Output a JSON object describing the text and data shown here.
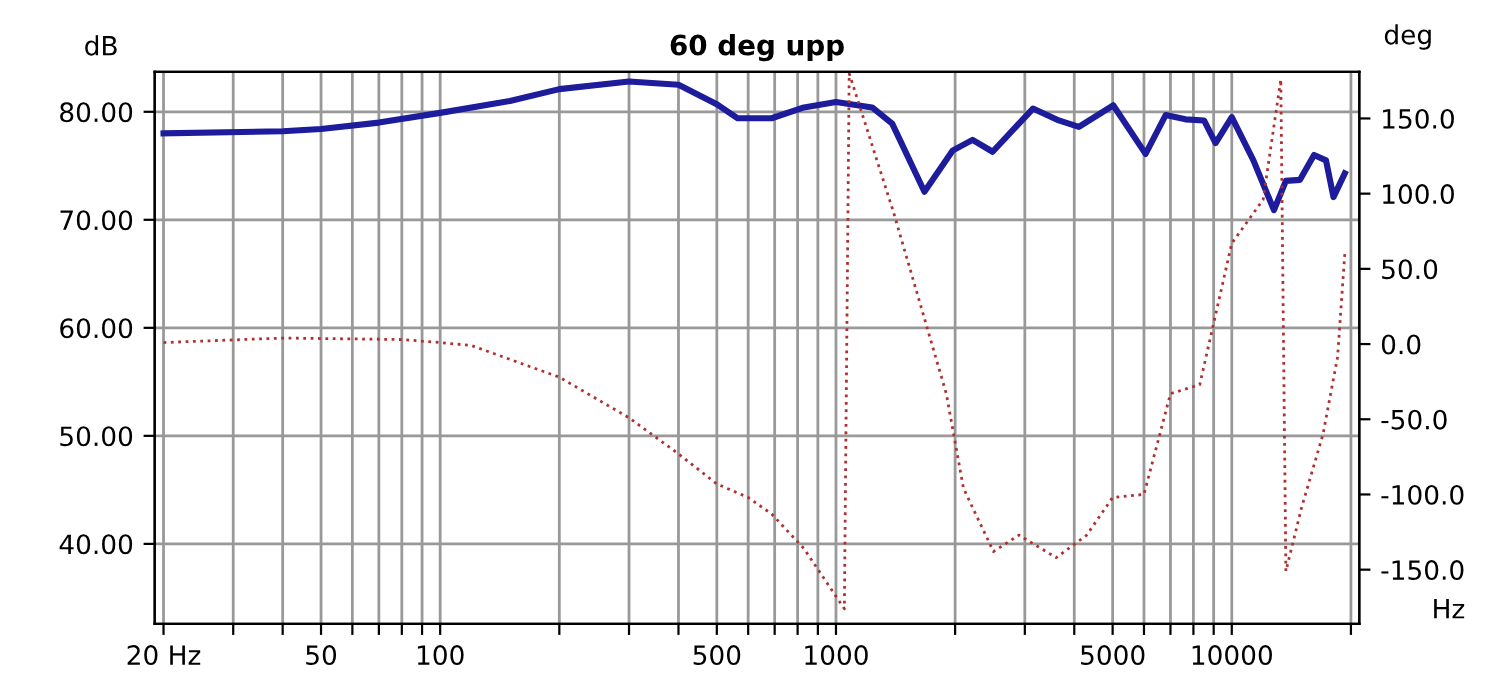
{
  "chart_data": {
    "type": "line",
    "title": "60 deg upp",
    "xlabel": "Hz",
    "ylabel": "dB",
    "y2label": "deg",
    "log": "x",
    "grid": true,
    "legend": false,
    "marker": "none",
    "xlim": [
      19,
      21000
    ],
    "xticks": [
      {
        "value": 20,
        "label": "20 Hz"
      },
      {
        "value": 30,
        "label": null
      },
      {
        "value": 40,
        "label": null
      },
      50,
      {
        "value": 60,
        "label": null
      },
      {
        "value": 70,
        "label": null
      },
      {
        "value": 80,
        "label": null
      },
      {
        "value": 90,
        "label": null
      },
      100,
      {
        "value": 200,
        "label": null
      },
      {
        "value": 300,
        "label": null
      },
      {
        "value": 400,
        "label": null
      },
      500,
      {
        "value": 600,
        "label": null
      },
      {
        "value": 700,
        "label": null
      },
      {
        "value": 800,
        "label": null
      },
      {
        "value": 900,
        "label": null
      },
      1000,
      {
        "value": 2000,
        "label": null
      },
      {
        "value": 3000,
        "label": null
      },
      {
        "value": 4000,
        "label": null
      },
      5000,
      {
        "value": 6000,
        "label": null
      },
      {
        "value": 7000,
        "label": null
      },
      {
        "value": 8000,
        "label": null
      },
      {
        "value": 9000,
        "label": null
      },
      10000,
      {
        "value": 20000,
        "label": null
      }
    ],
    "ylim": [
      32.6,
      83.7
    ],
    "yticks": [
      {
        "value": 40,
        "label": "40.00"
      },
      {
        "value": 50,
        "label": "50.00"
      },
      {
        "value": 60,
        "label": "60.00"
      },
      {
        "value": 70,
        "label": "70.00"
      },
      {
        "value": 80,
        "label": "80.00"
      }
    ],
    "y2lim": [
      -186,
      181
    ],
    "y2ticks": [
      {
        "value": -150,
        "label": "-150.0"
      },
      {
        "value": -100,
        "label": "-100.0"
      },
      {
        "value": -50,
        "label": "-50.0"
      },
      {
        "value": 0,
        "label": "0.0"
      },
      {
        "value": 50,
        "label": "50.0"
      },
      {
        "value": 100,
        "label": "100.0"
      },
      {
        "value": 150,
        "label": "150.0"
      }
    ],
    "series": [
      {
        "color": "#1c1c9c",
        "line_style": "solid",
        "x": [
          20,
          40,
          50,
          70,
          100,
          150,
          200,
          300,
          400,
          500,
          564,
          688,
          830,
          1000,
          1234,
          1387,
          1673,
          1970,
          2213,
          2488,
          3145,
          3656,
          4108,
          5017,
          6057,
          6806,
          7640,
          8510,
          9100,
          10000,
          11340,
          12780,
          13700,
          14870,
          16140,
          17300,
          18070,
          19300
        ],
        "values": [
          78.0,
          78.2,
          78.4,
          79.0,
          79.9,
          81.0,
          82.1,
          82.8,
          82.5,
          80.7,
          79.4,
          79.4,
          80.4,
          80.9,
          80.4,
          78.9,
          72.6,
          76.4,
          77.4,
          76.3,
          80.3,
          79.2,
          78.6,
          80.6,
          76.1,
          79.7,
          79.3,
          79.2,
          77.1,
          79.5,
          75.5,
          70.9,
          73.6,
          73.7,
          76.0,
          75.5,
          72.1,
          74.3
        ]
      },
      {
        "color": "#b03030",
        "line_style": "dotted",
        "axis": "y2",
        "x": [
          20,
          40,
          80,
          100,
          120,
          200,
          300,
          400,
          500,
          600,
          688,
          830,
          1050,
          1080,
          1400,
          1900,
          2100,
          2500,
          2900,
          3600,
          4300,
          5000,
          6000,
          7000,
          8300,
          10000,
          12000,
          13300,
          13700,
          15000,
          17000,
          18500,
          19300
        ],
        "values": [
          1,
          4,
          3,
          1,
          -1,
          -22,
          -49,
          -73,
          -93,
          -102,
          -113,
          -136,
          -176,
          180,
          87,
          -33,
          -96,
          -138,
          -127,
          -142,
          -127,
          -102,
          -100,
          -33,
          -27,
          67,
          96,
          176,
          -151,
          -109,
          -60,
          -9,
          60
        ]
      }
    ]
  }
}
